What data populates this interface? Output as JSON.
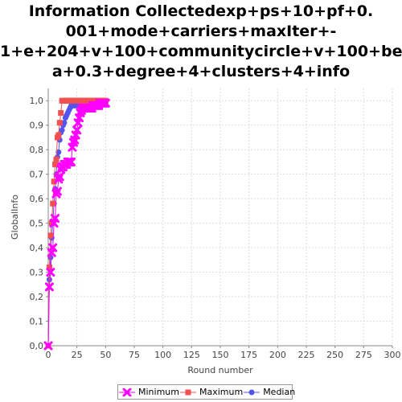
{
  "chart_data": {
    "type": "line",
    "title": "Information Collectedexp+ps+10+pf+0.\n001+mode+carriers+maxIter+-\n1+e+204+v+100+communitycircle+v+100+bet\na+0.3+degree+4+clusters+4+info",
    "xlabel": "Round number",
    "ylabel": "GlobalInfo",
    "xlim": [
      0,
      300
    ],
    "ylim": [
      0,
      1.05
    ],
    "xticks": [
      "0",
      "25",
      "50",
      "75",
      "100",
      "125",
      "150",
      "175",
      "200",
      "225",
      "250",
      "275",
      "300"
    ],
    "yticks": [
      "0,0",
      "0,1",
      "0,2",
      "0,3",
      "0,4",
      "0,5",
      "0,6",
      "0,7",
      "0,8",
      "0,9",
      "1,0"
    ],
    "grid": true,
    "legend_position": "bottom",
    "series": [
      {
        "name": "Minimum",
        "color": "#ff00ff",
        "marker": "x",
        "x": [
          0,
          1,
          2,
          3,
          4,
          5,
          6,
          7,
          8,
          9,
          10,
          11,
          12,
          13,
          14,
          15,
          16,
          17,
          18,
          19,
          20,
          21,
          22,
          23,
          24,
          25,
          26,
          27,
          28,
          29,
          30,
          31,
          32,
          33,
          34,
          35,
          36,
          37,
          38,
          39,
          40,
          41,
          42,
          43,
          44,
          45,
          46,
          47,
          48,
          49,
          50
        ],
        "y": [
          0.0,
          0.24,
          0.3,
          0.38,
          0.4,
          0.5,
          0.52,
          0.62,
          0.63,
          0.68,
          0.69,
          0.72,
          0.73,
          0.73,
          0.74,
          0.74,
          0.74,
          0.75,
          0.75,
          0.75,
          0.75,
          0.81,
          0.83,
          0.84,
          0.86,
          0.88,
          0.91,
          0.93,
          0.95,
          0.96,
          0.97,
          0.97,
          0.97,
          0.97,
          0.97,
          0.97,
          0.97,
          0.97,
          0.97,
          0.98,
          0.98,
          0.98,
          0.98,
          0.98,
          0.98,
          0.99,
          0.99,
          0.99,
          0.99,
          0.99,
          0.99
        ]
      },
      {
        "name": "Maximum",
        "color": "#f05050",
        "marker": "square",
        "x": [
          0,
          1,
          2,
          3,
          4,
          5,
          6,
          7,
          8,
          9,
          10,
          11,
          12,
          13,
          14,
          15,
          16,
          17,
          18,
          19,
          20,
          21,
          22,
          23,
          24,
          25,
          26,
          27,
          28,
          29,
          30,
          31,
          32,
          33,
          34,
          35,
          36,
          37,
          38,
          39,
          40,
          41,
          42,
          43,
          44,
          45,
          46,
          47,
          48,
          49,
          50
        ],
        "y": [
          0.0,
          0.32,
          0.45,
          0.5,
          0.58,
          0.67,
          0.74,
          0.76,
          0.85,
          0.86,
          0.91,
          0.95,
          1.0,
          1.0,
          1.0,
          1.0,
          1.0,
          1.0,
          1.0,
          1.0,
          1.0,
          1.0,
          1.0,
          1.0,
          1.0,
          1.0,
          1.0,
          1.0,
          1.0,
          1.0,
          1.0,
          1.0,
          1.0,
          1.0,
          1.0,
          1.0,
          1.0,
          1.0,
          1.0,
          1.0,
          1.0,
          1.0,
          1.0,
          1.0,
          1.0,
          1.0,
          1.0,
          1.0,
          1.0,
          1.0,
          1.0
        ]
      },
      {
        "name": "Median",
        "color": "#5555ee",
        "marker": "circle",
        "x": [
          0,
          1,
          2,
          3,
          4,
          5,
          6,
          7,
          8,
          9,
          10,
          11,
          12,
          13,
          14,
          15,
          16,
          17,
          18,
          19,
          20,
          21,
          22,
          23,
          24,
          25,
          26,
          27,
          28,
          29,
          30,
          31,
          32,
          33,
          34,
          35,
          36,
          37,
          38,
          39,
          40,
          41,
          42,
          43,
          44,
          45,
          46,
          47,
          48,
          49,
          50
        ],
        "y": [
          0.0,
          0.27,
          0.36,
          0.44,
          0.5,
          0.58,
          0.64,
          0.7,
          0.77,
          0.79,
          0.84,
          0.87,
          0.88,
          0.9,
          0.91,
          0.93,
          0.94,
          0.95,
          0.96,
          0.97,
          0.98,
          0.98,
          0.98,
          0.98,
          0.98,
          0.98,
          0.98,
          0.98,
          0.98,
          0.99,
          0.99,
          0.99,
          0.99,
          0.99,
          0.99,
          0.99,
          0.99,
          0.99,
          0.99,
          0.99,
          0.99,
          0.99,
          0.99,
          0.99,
          0.99,
          0.99,
          0.99,
          0.99,
          0.99,
          0.99,
          0.99
        ]
      }
    ]
  }
}
